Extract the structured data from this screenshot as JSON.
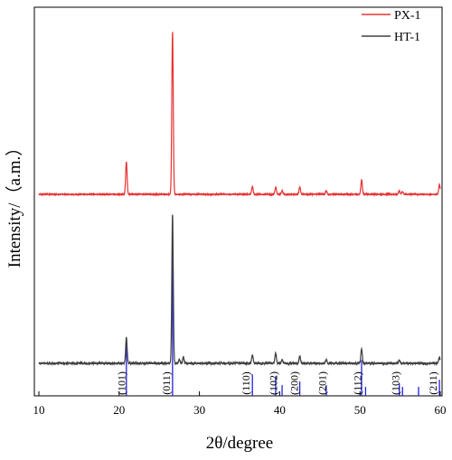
{
  "chart_data": {
    "type": "line",
    "xlabel": "2θ/degree",
    "ylabel": "Intensity/（a.m.）",
    "xlim": [
      10,
      60
    ],
    "x_ticks": [
      10,
      20,
      30,
      40,
      50,
      60
    ],
    "y_ticks_shown": false,
    "grid": false,
    "legend_position": "top-right",
    "series": [
      {
        "name": "PX-1",
        "color": "#e83232",
        "baseline": 215,
        "peaks": [
          {
            "x": 20.9,
            "y": 36
          },
          {
            "x": 26.65,
            "y": 180
          },
          {
            "x": 36.6,
            "y": 9
          },
          {
            "x": 39.5,
            "y": 8
          },
          {
            "x": 40.3,
            "y": 4
          },
          {
            "x": 42.5,
            "y": 8
          },
          {
            "x": 45.8,
            "y": 4
          },
          {
            "x": 50.2,
            "y": 16
          },
          {
            "x": 54.9,
            "y": 4
          },
          {
            "x": 55.3,
            "y": 3
          },
          {
            "x": 59.9,
            "y": 11
          }
        ]
      },
      {
        "name": "HT-1",
        "color": "#404040",
        "baseline": 402,
        "peaks": [
          {
            "x": 20.9,
            "y": 29
          },
          {
            "x": 26.65,
            "y": 165
          },
          {
            "x": 27.5,
            "y": 4
          },
          {
            "x": 28.0,
            "y": 7
          },
          {
            "x": 36.6,
            "y": 9
          },
          {
            "x": 39.5,
            "y": 11
          },
          {
            "x": 40.3,
            "y": 4
          },
          {
            "x": 42.5,
            "y": 8
          },
          {
            "x": 45.8,
            "y": 4
          },
          {
            "x": 50.2,
            "y": 16
          },
          {
            "x": 54.9,
            "y": 4
          },
          {
            "x": 59.9,
            "y": 7
          }
        ]
      }
    ],
    "reference_pattern": {
      "color": "#2222dd",
      "sticks": [
        {
          "x": 20.9,
          "y": 30
        },
        {
          "x": 26.65,
          "y": 100
        },
        {
          "x": 36.6,
          "y": 12
        },
        {
          "x": 39.5,
          "y": 11
        },
        {
          "x": 40.3,
          "y": 6
        },
        {
          "x": 42.5,
          "y": 8
        },
        {
          "x": 45.8,
          "y": 6
        },
        {
          "x": 50.2,
          "y": 20
        },
        {
          "x": 50.7,
          "y": 5
        },
        {
          "x": 54.9,
          "y": 7
        },
        {
          "x": 55.3,
          "y": 5
        },
        {
          "x": 57.3,
          "y": 5
        },
        {
          "x": 59.9,
          "y": 9
        }
      ],
      "labels": [
        {
          "x": 20.3,
          "text": "(101)"
        },
        {
          "x": 25.9,
          "text": "(011)"
        },
        {
          "x": 35.8,
          "text": "(110)"
        },
        {
          "x": 39.2,
          "text": "(102)"
        },
        {
          "x": 41.8,
          "text": "(200)"
        },
        {
          "x": 45.3,
          "text": "(201)"
        },
        {
          "x": 49.7,
          "text": "(112)"
        },
        {
          "x": 54.4,
          "text": "(103)"
        },
        {
          "x": 59.1,
          "text": "(211)"
        }
      ]
    }
  }
}
